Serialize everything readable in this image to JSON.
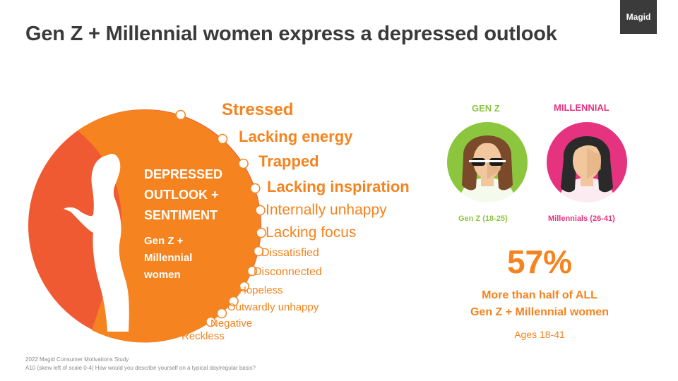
{
  "header": {
    "title": "Gen Z + Millennial women express a depressed outlook",
    "brand": "Magid"
  },
  "center": {
    "heading_lines": [
      "DEPRESSED",
      "OUTLOOK +",
      "SENTIMENT"
    ],
    "sub_lines": [
      "Gen Z +",
      "Millennial",
      "women"
    ]
  },
  "sentiments": [
    "Stressed",
    "Lacking energy",
    "Trapped",
    "Lacking inspiration",
    "Internally unhappy",
    "Lacking focus",
    "Dissatisfied",
    "Disconnected",
    "Hopeless",
    "Outwardly unhappy",
    "Negative",
    "Reckless"
  ],
  "groups": {
    "genz": {
      "heading": "GEN Z",
      "label": "Gen Z (18-25)",
      "color": "#8cc63f"
    },
    "millennial": {
      "heading": "MILLENNIAL",
      "label": "Millennials (26-41)",
      "color": "#e5337f"
    }
  },
  "stat": {
    "value": "57%",
    "line1": "More than half of ALL",
    "line2": "Gen Z + Millennial women",
    "ages": "Ages 18-41"
  },
  "footnote": {
    "line1": "2022 Magid Consumer Motivations Study",
    "line2": "A10 (skew left of scale 0-4) How would you describe yourself on a typical day/regular basis?"
  },
  "colors": {
    "orange": "#f5831f",
    "red_orange": "#ef5a33",
    "title": "#3a3a3a",
    "skin": "#f2c79d",
    "hair_brown": "#7a4a2a",
    "hair_dark": "#2a2a2a"
  }
}
